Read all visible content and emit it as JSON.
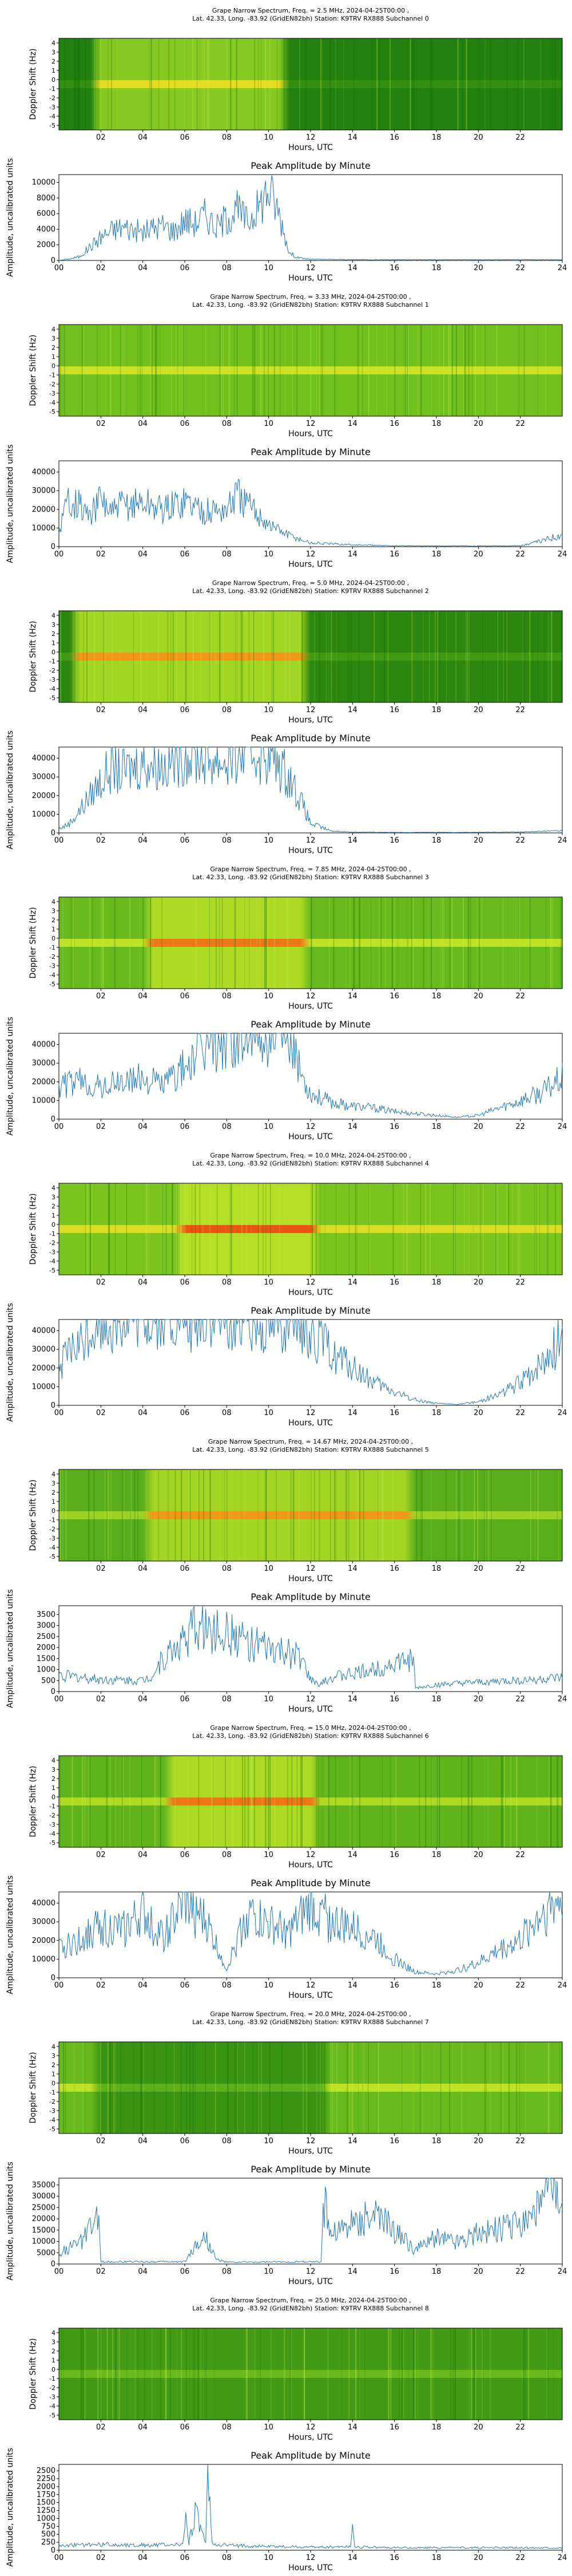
{
  "page": {
    "background": "#ffffff"
  },
  "colors": {
    "line": "#1f77b4",
    "spec_base": "#138a13",
    "spec_mid": "#a8dc2a",
    "spec_hot": "#ffe326",
    "spec_peak": "#f0420f"
  },
  "common": {
    "spec_xlabel": "Hours, UTC",
    "spec_ylabel": "Doppler Shift (Hz)",
    "spec_xticks": [
      "02",
      "04",
      "06",
      "08",
      "10",
      "12",
      "14",
      "16",
      "18",
      "20",
      "22"
    ],
    "spec_yticks": [
      "4",
      "3",
      "2",
      "1",
      "0",
      "-1",
      "-2",
      "-3",
      "-4",
      "-5"
    ],
    "amp_title": "Peak Amplitude by Minute",
    "amp_xlabel": "Hours, UTC",
    "amp_ylabel": "Amplitude, uncalibrated units",
    "amp_xticks": [
      "00",
      "02",
      "04",
      "06",
      "08",
      "10",
      "12",
      "14",
      "16",
      "18",
      "20",
      "22",
      "24"
    ]
  },
  "chart_data": [
    {
      "index": 0,
      "type": "heatmap",
      "title_line1": "Grape Narrow Spectrum, Freq. = 2.5 MHz, 2024-04-25T00:00 ,",
      "title_line2": "Lat.  42.33, Long. -83.92 (GridEN82bh) Station: K9TRV RX888 Subchannel 0",
      "xlim": [
        0,
        24
      ],
      "ylim": [
        -5,
        5
      ],
      "intensity_profile": "peak 02-11 UTC at 0 Hz, quiet otherwise"
    },
    {
      "index": 0,
      "type": "line",
      "title": "Peak Amplitude by Minute",
      "xlim": [
        0,
        24
      ],
      "ylim": [
        0,
        11000
      ],
      "yticks": [
        "0",
        "2000",
        "4000",
        "6000",
        "8000",
        "10000"
      ],
      "x": [
        0,
        0.5,
        1,
        1.5,
        2,
        2.5,
        3,
        3.5,
        4,
        4.5,
        5,
        5.5,
        6,
        6.5,
        7,
        7.5,
        8,
        8.5,
        9,
        9.5,
        10,
        10.5,
        11,
        11.5,
        12,
        14,
        16,
        18,
        20,
        22,
        24
      ],
      "values": [
        0,
        200,
        500,
        1800,
        3000,
        3800,
        4300,
        4000,
        3600,
        4200,
        4500,
        3800,
        5200,
        4800,
        6000,
        4200,
        5500,
        6500,
        5000,
        6800,
        9200,
        6000,
        900,
        300,
        150,
        100,
        100,
        100,
        100,
        100,
        100
      ]
    },
    {
      "index": 1,
      "type": "heatmap",
      "title_line1": "Grape Narrow Spectrum, Freq. = 3.33 MHz, 2024-04-25T00:00 ,",
      "title_line2": "Lat.  42.33, Long. -83.92 (GridEN82bh) Station: K9TRV RX888 Subchannel 1",
      "xlim": [
        0,
        24
      ],
      "ylim": [
        -5,
        5
      ],
      "intensity_profile": "steady carrier at 0 Hz all day"
    },
    {
      "index": 1,
      "type": "line",
      "title": "Peak Amplitude by Minute",
      "xlim": [
        0,
        24
      ],
      "ylim": [
        0,
        46000
      ],
      "yticks": [
        "0",
        "10000",
        "20000",
        "30000",
        "40000"
      ],
      "x": [
        0,
        0.5,
        1,
        1.5,
        2,
        2.5,
        3,
        4,
        5,
        6,
        7,
        8,
        8.5,
        9,
        9.5,
        10,
        11,
        12,
        14,
        16,
        18,
        20,
        22,
        23,
        24
      ],
      "values": [
        8000,
        28000,
        22000,
        16000,
        26000,
        18000,
        22000,
        24000,
        20000,
        25000,
        19000,
        20000,
        28000,
        22000,
        18000,
        12000,
        6000,
        2000,
        1000,
        500,
        400,
        400,
        500,
        3000,
        7000
      ]
    },
    {
      "index": 2,
      "type": "heatmap",
      "title_line1": "Grape Narrow Spectrum, Freq. = 5.0 MHz, 2024-04-25T00:00 ,",
      "title_line2": "Lat.  42.33, Long. -83.92 (GridEN82bh) Station: K9TRV RX888 Subchannel 2",
      "xlim": [
        0,
        24
      ],
      "ylim": [
        -5,
        5
      ],
      "intensity_profile": "strong 01-12 UTC, quiet later"
    },
    {
      "index": 2,
      "type": "line",
      "title": "Peak Amplitude by Minute",
      "xlim": [
        0,
        24
      ],
      "ylim": [
        0,
        46000
      ],
      "yticks": [
        "0",
        "10000",
        "20000",
        "30000",
        "40000"
      ],
      "x": [
        0,
        0.5,
        1,
        1.5,
        2,
        2.5,
        3,
        4,
        5,
        6,
        7,
        8,
        9,
        10,
        11,
        11.5,
        12,
        13,
        14,
        16,
        18,
        20,
        22,
        24
      ],
      "values": [
        2000,
        5000,
        12000,
        20000,
        28000,
        35000,
        32000,
        38000,
        36000,
        42000,
        40000,
        38000,
        44000,
        42000,
        30000,
        18000,
        5000,
        1000,
        400,
        300,
        300,
        300,
        500,
        1200
      ]
    },
    {
      "index": 3,
      "type": "heatmap",
      "title_line1": "Grape Narrow Spectrum, Freq. = 7.85 MHz, 2024-04-25T00:00 ,",
      "title_line2": "Lat.  42.33, Long. -83.92 (GridEN82bh) Station: K9TRV RX888 Subchannel 3",
      "xlim": [
        0,
        24
      ],
      "ylim": [
        -5,
        5
      ],
      "intensity_profile": "hot 04-12 UTC, moderate elsewhere"
    },
    {
      "index": 3,
      "type": "line",
      "title": "Peak Amplitude by Minute",
      "xlim": [
        0,
        24
      ],
      "ylim": [
        0,
        46000
      ],
      "yticks": [
        "0",
        "10000",
        "20000",
        "30000",
        "40000"
      ],
      "x": [
        0,
        1,
        2,
        3,
        4,
        5,
        6,
        7,
        8,
        9,
        10,
        11,
        12,
        13,
        14,
        15,
        16,
        17,
        18,
        19,
        20,
        21,
        22,
        23,
        24
      ],
      "values": [
        18000,
        20000,
        17000,
        20000,
        22000,
        19000,
        28000,
        38000,
        44000,
        46000,
        45000,
        38000,
        14000,
        9000,
        7000,
        6000,
        4000,
        3000,
        2000,
        1000,
        2000,
        6000,
        10000,
        14000,
        22000
      ]
    },
    {
      "index": 4,
      "type": "heatmap",
      "title_line1": "Grape Narrow Spectrum, Freq. = 10.0 MHz, 2024-04-25T00:00 ,",
      "title_line2": "Lat.  42.33, Long. -83.92 (GridEN82bh) Station: K9TRV RX888 Subchannel 4",
      "xlim": [
        0,
        24
      ],
      "ylim": [
        -5,
        5
      ],
      "intensity_profile": "active all day, strongest 06-12 UTC"
    },
    {
      "index": 4,
      "type": "line",
      "title": "Peak Amplitude by Minute",
      "xlim": [
        0,
        24
      ],
      "ylim": [
        0,
        46000
      ],
      "yticks": [
        "0",
        "10000",
        "20000",
        "30000",
        "40000"
      ],
      "x": [
        0,
        0.5,
        1,
        1.5,
        2,
        3,
        4,
        5,
        6,
        7,
        8,
        9,
        10,
        11,
        12,
        13,
        14,
        15,
        16,
        17,
        18,
        19,
        20,
        21,
        22,
        23,
        24
      ],
      "values": [
        20000,
        28000,
        32000,
        40000,
        46000,
        46000,
        46000,
        46000,
        46000,
        46000,
        46000,
        46000,
        46000,
        46000,
        40000,
        28000,
        20000,
        12000,
        7000,
        3000,
        1000,
        500,
        2000,
        6000,
        12000,
        22000,
        36000
      ]
    },
    {
      "index": 5,
      "type": "heatmap",
      "title_line1": "Grape Narrow Spectrum, Freq. = 14.67 MHz, 2024-04-25T00:00 ,",
      "title_line2": "Lat.  42.33, Long. -83.92 (GridEN82bh) Station: K9TRV RX888 Subchannel 5",
      "xlim": [
        0,
        24
      ],
      "ylim": [
        -5,
        5
      ],
      "intensity_profile": "broadband hot 04-17 UTC"
    },
    {
      "index": 5,
      "type": "line",
      "title": "Peak Amplitude by Minute",
      "xlim": [
        0,
        24
      ],
      "ylim": [
        0,
        3900
      ],
      "yticks": [
        "0",
        "500",
        "1000",
        "1500",
        "2000",
        "2500",
        "3000",
        "3500"
      ],
      "x": [
        0,
        1,
        2,
        3,
        4,
        4.5,
        5,
        6,
        6.5,
        7,
        8,
        9,
        10,
        11,
        11.5,
        12,
        12.5,
        13,
        14,
        15,
        16,
        16.9,
        17,
        18,
        20,
        22,
        24
      ],
      "values": [
        750,
        650,
        550,
        520,
        500,
        800,
        1500,
        2400,
        3000,
        2900,
        2600,
        2300,
        1900,
        1700,
        1600,
        500,
        350,
        650,
        800,
        1000,
        1300,
        1400,
        150,
        300,
        400,
        500,
        600
      ]
    },
    {
      "index": 6,
      "type": "heatmap",
      "title_line1": "Grape Narrow Spectrum, Freq. = 15.0 MHz, 2024-04-25T00:00 ,",
      "title_line2": "Lat.  42.33, Long. -83.92 (GridEN82bh) Station: K9TRV RX888 Subchannel 6",
      "xlim": [
        0,
        24
      ],
      "ylim": [
        -5,
        5
      ],
      "intensity_profile": "hot 05-12 UTC with spread"
    },
    {
      "index": 6,
      "type": "line",
      "title": "Peak Amplitude by Minute",
      "xlim": [
        0,
        24
      ],
      "ylim": [
        0,
        46000
      ],
      "yticks": [
        "0",
        "10000",
        "20000",
        "30000",
        "40000"
      ],
      "x": [
        0,
        1,
        2,
        3,
        4,
        5,
        6,
        7,
        8,
        9,
        10,
        11,
        12,
        13,
        14,
        15,
        16,
        17,
        18,
        19,
        20,
        21,
        22,
        23,
        24
      ],
      "values": [
        15000,
        20000,
        28000,
        25000,
        34000,
        22000,
        40000,
        30000,
        5000,
        35000,
        28000,
        24000,
        38000,
        30000,
        26000,
        22000,
        10000,
        3000,
        2000,
        4000,
        8000,
        15000,
        20000,
        35000,
        42000
      ]
    },
    {
      "index": 7,
      "type": "heatmap",
      "title_line1": "Grape Narrow Spectrum, Freq. = 20.0 MHz, 2024-04-25T00:00 ,",
      "title_line2": "Lat.  42.33, Long. -83.92 (GridEN82bh) Station: K9TRV RX888 Subchannel 7",
      "xlim": [
        0,
        24
      ],
      "ylim": [
        -5,
        5
      ],
      "intensity_profile": "carrier 00-02 and 12-24 UTC, gap midday"
    },
    {
      "index": 7,
      "type": "line",
      "title": "Peak Amplitude by Minute",
      "xlim": [
        0,
        24
      ],
      "ylim": [
        0,
        38000
      ],
      "yticks": [
        "0",
        "5000",
        "10000",
        "15000",
        "20000",
        "25000",
        "30000",
        "35000"
      ],
      "x": [
        0,
        1,
        1.9,
        2,
        6,
        6.5,
        7,
        7.5,
        8,
        12.5,
        12.6,
        13,
        14,
        15,
        16,
        17,
        18,
        19,
        20,
        21,
        22,
        23,
        23.5,
        24
      ],
      "values": [
        5000,
        9000,
        20000,
        1000,
        1000,
        8000,
        12000,
        2000,
        800,
        1000,
        28000,
        14000,
        18000,
        22000,
        15000,
        6000,
        12000,
        10000,
        14000,
        16000,
        18000,
        26000,
        35000,
        20000
      ]
    },
    {
      "index": 8,
      "type": "heatmap",
      "title_line1": "Grape Narrow Spectrum, Freq. = 25.0 MHz, 2024-04-25T00:00 ,",
      "title_line2": "Lat.  42.33, Long. -83.92 (GridEN82bh) Station: K9TRV RX888 Subchannel 8",
      "xlim": [
        0,
        24
      ],
      "ylim": [
        -5,
        5
      ],
      "intensity_profile": "mostly noise, faint lines"
    },
    {
      "index": 8,
      "type": "line",
      "title": "Peak Amplitude by Minute",
      "xlim": [
        0,
        24
      ],
      "ylim": [
        0,
        2700
      ],
      "yticks": [
        "0",
        "250",
        "500",
        "750",
        "1000",
        "1250",
        "1500",
        "1750",
        "2000",
        "2250",
        "2500"
      ],
      "x": [
        0,
        2,
        4,
        5.9,
        6,
        6.2,
        6.5,
        7,
        7.1,
        7.3,
        8,
        10,
        12,
        13.9,
        14,
        14.1,
        16,
        18,
        20,
        22,
        24
      ],
      "values": [
        150,
        180,
        160,
        170,
        1100,
        200,
        1300,
        180,
        2650,
        200,
        150,
        120,
        100,
        120,
        900,
        110,
        80,
        80,
        80,
        80,
        80
      ]
    }
  ]
}
